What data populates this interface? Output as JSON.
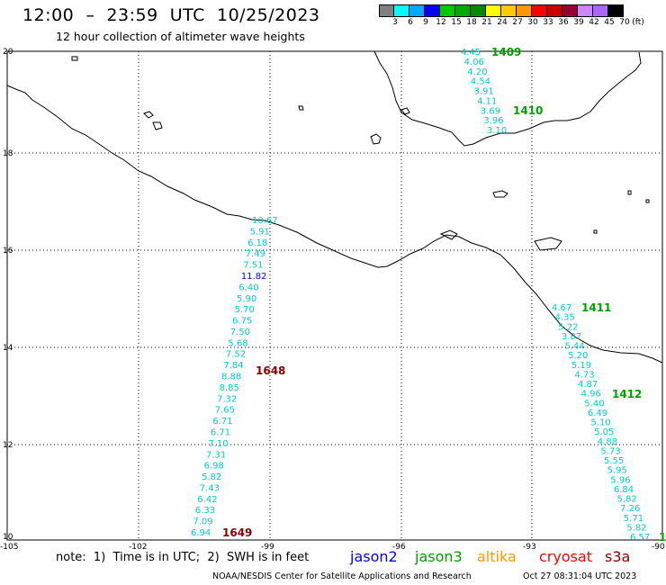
{
  "header": {
    "title": "12:00  –  23:59  UTC  10/25/2023",
    "subtitle": "12 hour collection of altimeter wave heights"
  },
  "legend": {
    "unit": "(ft)",
    "labels": [
      "3",
      "6",
      "9",
      "12",
      "15",
      "18",
      "21",
      "24",
      "27",
      "30",
      "33",
      "36",
      "39",
      "42",
      "45",
      "70"
    ],
    "colors": [
      "#808080",
      "#00ffff",
      "#00aaff",
      "#0000ff",
      "#00cc00",
      "#00aa00",
      "#008800",
      "#ffff00",
      "#ffcc00",
      "#ff9900",
      "#ff0000",
      "#cc0000",
      "#990033",
      "#cc88ff",
      "#aa66ff",
      "#000000"
    ]
  },
  "axes": {
    "lon_ticks": [
      "-105",
      "-102",
      "-99",
      "-96",
      "-93",
      "-90"
    ],
    "lat_ticks": [
      "20",
      "18",
      "16",
      "14",
      "12",
      "10"
    ]
  },
  "passes": [
    {
      "id": "1409",
      "color": "#00a000"
    },
    {
      "id": "1410",
      "color": "#00a000"
    },
    {
      "id": "1411",
      "color": "#00a000"
    },
    {
      "id": "1412",
      "color": "#00a000"
    },
    {
      "id": "1648",
      "color": "#8b0000"
    },
    {
      "id": "1649",
      "color": "#8b0000"
    },
    {
      "id": "1",
      "color": "#00a000"
    }
  ],
  "tracks": {
    "track_1409": [
      "4.45",
      "4.06",
      "4.20",
      "4.54",
      "3.91",
      "4.11",
      "3.69",
      "3.96",
      "3.10"
    ],
    "track_1648": [
      "10.67",
      "5.91",
      "6.18",
      "7.49",
      "7.51",
      "11.82",
      "6.40",
      "5.90",
      "5.70",
      "6.75",
      "7.50",
      "5.68",
      "7.52",
      "7.84",
      "8.88",
      "8.85",
      "7.32",
      "7.65",
      "6.71",
      "6.71",
      "7.10",
      "7.31",
      "6.98",
      "5.82",
      "7.43",
      "6.42",
      "6.33",
      "7.09",
      "6.94"
    ],
    "track_1648_colors": [
      "#00cccc",
      "#00cccc",
      "#00cccc",
      "#00cccc",
      "#00cccc",
      "#0000ff",
      "#00cccc",
      "#00cccc",
      "#00cccc",
      "#00cccc",
      "#00cccc",
      "#00cccc",
      "#00cccc",
      "#00cccc",
      "#00cccc",
      "#00cccc",
      "#00cccc",
      "#00cccc",
      "#00cccc",
      "#00cccc",
      "#00cccc",
      "#00cccc",
      "#00cccc",
      "#00cccc",
      "#00cccc",
      "#00cccc",
      "#00cccc",
      "#00cccc",
      "#00cccc"
    ],
    "track_1411": [
      "4.67",
      "4.35",
      "5.22",
      "3.87",
      "5.44",
      "5.20",
      "5.19",
      "4.73",
      "4.87",
      "4.96",
      "5.40",
      "6.49",
      "5.10",
      "5.05",
      "4.88",
      "5.73",
      "5.55",
      "5.95",
      "5.96",
      "6.84",
      "5.82",
      "7.26",
      "5.71",
      "5.82",
      "6.57"
    ]
  },
  "footer": {
    "note": "note:  1)  Time is in UTC;  2)  SWH is in feet",
    "satellites": {
      "jason2": "jason2",
      "jason3": "jason3",
      "altika": "altika",
      "cryosat": "cryosat",
      "s3a": "s3a"
    },
    "credit": "NOAA/NESDIS Center for Satellite Applications and Research",
    "timestamp": "Oct 27 08:31:04 UTC 2023"
  }
}
